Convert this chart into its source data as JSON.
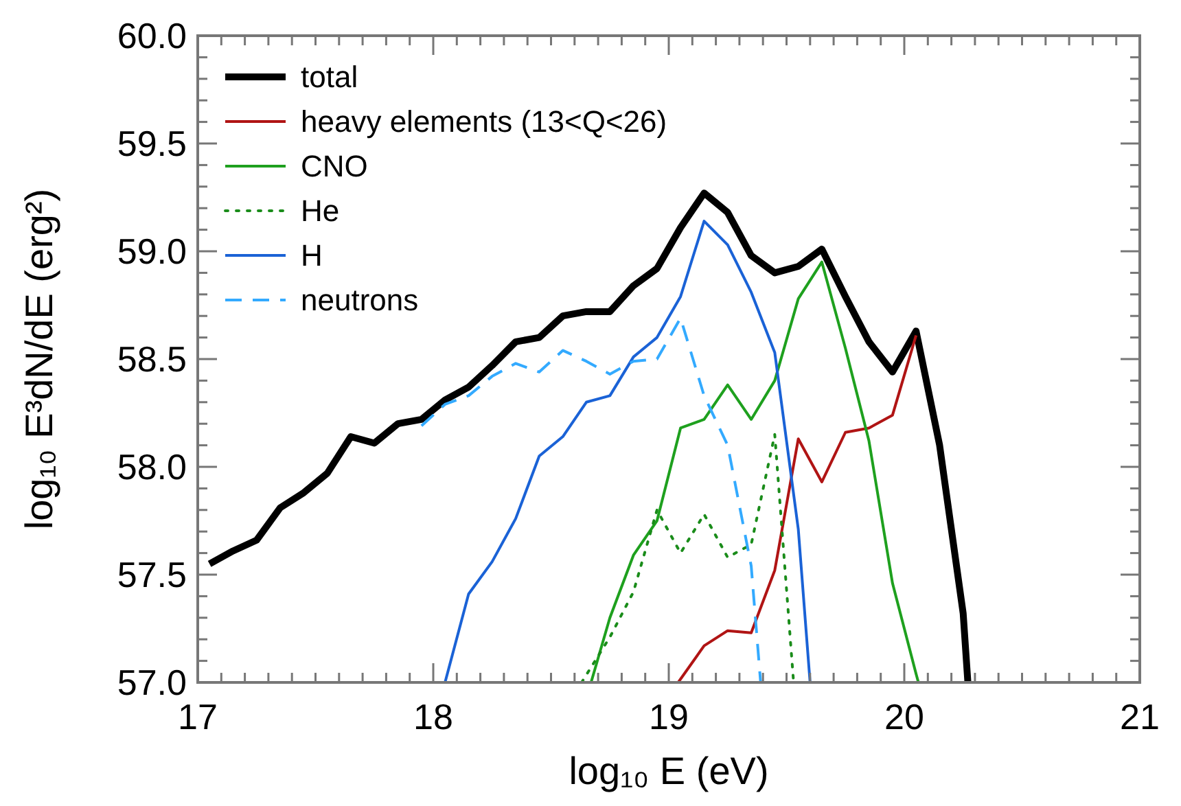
{
  "chart_data": {
    "type": "line",
    "xlabel": "log₁₀ E (eV)",
    "ylabel": "log₁₀ E³dN/dE (erg²)",
    "xlim": [
      17,
      21
    ],
    "ylim": [
      57,
      60
    ],
    "xticks": [
      17,
      {
        "value": 17.1,
        "label": null
      },
      {
        "value": 17.2,
        "label": null
      },
      {
        "value": 17.3,
        "label": null
      },
      {
        "value": 17.4,
        "label": null
      },
      {
        "value": 17.5,
        "label": null
      },
      {
        "value": 17.6,
        "label": null
      },
      {
        "value": 17.7,
        "label": null
      },
      {
        "value": 17.8,
        "label": null
      },
      {
        "value": 17.9,
        "label": null
      },
      18,
      {
        "value": 18.1,
        "label": null
      },
      {
        "value": 18.2,
        "label": null
      },
      {
        "value": 18.3,
        "label": null
      },
      {
        "value": 18.4,
        "label": null
      },
      {
        "value": 18.5,
        "label": null
      },
      {
        "value": 18.6,
        "label": null
      },
      {
        "value": 18.7,
        "label": null
      },
      {
        "value": 18.8,
        "label": null
      },
      {
        "value": 18.9,
        "label": null
      },
      19,
      {
        "value": 19.1,
        "label": null
      },
      {
        "value": 19.2,
        "label": null
      },
      {
        "value": 19.3,
        "label": null
      },
      {
        "value": 19.4,
        "label": null
      },
      {
        "value": 19.5,
        "label": null
      },
      {
        "value": 19.6,
        "label": null
      },
      {
        "value": 19.7,
        "label": null
      },
      {
        "value": 19.8,
        "label": null
      },
      {
        "value": 19.9,
        "label": null
      },
      20,
      {
        "value": 20.1,
        "label": null
      },
      {
        "value": 20.2,
        "label": null
      },
      {
        "value": 20.3,
        "label": null
      },
      {
        "value": 20.4,
        "label": null
      },
      {
        "value": 20.5,
        "label": null
      },
      {
        "value": 20.6,
        "label": null
      },
      {
        "value": 20.7,
        "label": null
      },
      {
        "value": 20.8,
        "label": null
      },
      {
        "value": 20.9,
        "label": null
      },
      21
    ],
    "yticks": [
      {
        "value": 57,
        "label": "57.0"
      },
      {
        "value": 57.1,
        "label": null
      },
      {
        "value": 57.2,
        "label": null
      },
      {
        "value": 57.3,
        "label": null
      },
      {
        "value": 57.4,
        "label": null
      },
      {
        "value": 57.5,
        "label": "57.5"
      },
      {
        "value": 57.6,
        "label": null
      },
      {
        "value": 57.7,
        "label": null
      },
      {
        "value": 57.8,
        "label": null
      },
      {
        "value": 57.9,
        "label": null
      },
      {
        "value": 58,
        "label": "58.0"
      },
      {
        "value": 58.1,
        "label": null
      },
      {
        "value": 58.2,
        "label": null
      },
      {
        "value": 58.3,
        "label": null
      },
      {
        "value": 58.4,
        "label": null
      },
      {
        "value": 58.5,
        "label": "58.5"
      },
      {
        "value": 58.6,
        "label": null
      },
      {
        "value": 58.7,
        "label": null
      },
      {
        "value": 58.8,
        "label": null
      },
      {
        "value": 58.9,
        "label": null
      },
      {
        "value": 59,
        "label": "59.0"
      },
      {
        "value": 59.1,
        "label": null
      },
      {
        "value": 59.2,
        "label": null
      },
      {
        "value": 59.3,
        "label": null
      },
      {
        "value": 59.4,
        "label": null
      },
      {
        "value": 59.5,
        "label": "59.5"
      },
      {
        "value": 59.6,
        "label": null
      },
      {
        "value": 59.7,
        "label": null
      },
      {
        "value": 59.8,
        "label": null
      },
      {
        "value": 59.9,
        "label": null
      },
      {
        "value": 60,
        "label": "60.0"
      }
    ],
    "grid": false,
    "legend": "top left",
    "marker": "none",
    "series": [
      {
        "name": "total",
        "color": "#000000",
        "line_style": "solid",
        "x": [
          17.05,
          17.15,
          17.25,
          17.35,
          17.45,
          17.55,
          17.65,
          17.75,
          17.85,
          17.95,
          18.05,
          18.15,
          18.25,
          18.35,
          18.45,
          18.55,
          18.65,
          18.75,
          18.85,
          18.95,
          19.05,
          19.15,
          19.25,
          19.35,
          19.45,
          19.55,
          19.65,
          19.75,
          19.85,
          19.95,
          20.05,
          20.15,
          20.25,
          20.27
        ],
        "values": [
          57.55,
          57.61,
          57.66,
          57.81,
          57.88,
          57.97,
          58.14,
          58.11,
          58.2,
          58.22,
          58.31,
          58.37,
          58.47,
          58.58,
          58.6,
          58.7,
          58.72,
          58.72,
          58.84,
          58.92,
          59.11,
          59.27,
          59.18,
          58.98,
          58.9,
          58.93,
          59.01,
          58.79,
          58.58,
          58.44,
          58.63,
          58.1,
          57.32,
          57.0
        ]
      },
      {
        "name": "heavy elements (13<Q<26)",
        "color": "#b01414",
        "line_style": "solid",
        "x": [
          19.04,
          19.15,
          19.25,
          19.35,
          19.45,
          19.55,
          19.65,
          19.75,
          19.85,
          19.95,
          20.05
        ],
        "values": [
          57.0,
          57.17,
          57.24,
          57.23,
          57.52,
          58.13,
          57.93,
          58.16,
          58.18,
          58.24,
          58.61
        ]
      },
      {
        "name": "CNO",
        "color": "#1ea01e",
        "line_style": "solid",
        "x": [
          18.67,
          18.75,
          18.85,
          18.95,
          19.05,
          19.15,
          19.25,
          19.35,
          19.45,
          19.55,
          19.65,
          19.75,
          19.85,
          19.95,
          20.05,
          20.06
        ],
        "values": [
          57.0,
          57.3,
          57.59,
          57.75,
          58.18,
          58.22,
          58.38,
          58.22,
          58.4,
          58.78,
          58.95,
          58.55,
          58.12,
          57.46,
          57.04,
          57.0
        ]
      },
      {
        "name": "He",
        "color": "#1a8c1a",
        "line_style": "dotted",
        "x": [
          18.63,
          18.75,
          18.85,
          18.95,
          19.05,
          19.15,
          19.25,
          19.35,
          19.45,
          19.53
        ],
        "values": [
          57.0,
          57.21,
          57.42,
          57.8,
          57.6,
          57.78,
          57.58,
          57.64,
          58.15,
          57.0
        ]
      },
      {
        "name": "H",
        "color": "#1a62d6",
        "line_style": "solid",
        "x": [
          18.05,
          18.15,
          18.25,
          18.35,
          18.45,
          18.55,
          18.65,
          18.75,
          18.85,
          18.95,
          19.05,
          19.15,
          19.25,
          19.35,
          19.45,
          19.55,
          19.6
        ],
        "values": [
          57.0,
          57.41,
          57.56,
          57.76,
          58.05,
          58.14,
          58.3,
          58.33,
          58.51,
          58.6,
          58.79,
          59.14,
          59.03,
          58.81,
          58.53,
          57.71,
          57.0
        ]
      },
      {
        "name": "neutrons",
        "color": "#33aaff",
        "line_style": "dashed",
        "x": [
          17.95,
          18.05,
          18.15,
          18.25,
          18.35,
          18.45,
          18.55,
          18.65,
          18.75,
          18.85,
          18.95,
          19.05,
          19.15,
          19.25,
          19.35,
          19.39
        ],
        "values": [
          58.19,
          58.29,
          58.33,
          58.42,
          58.48,
          58.44,
          58.54,
          58.49,
          58.43,
          58.49,
          58.5,
          58.69,
          58.33,
          58.1,
          57.54,
          57.0
        ]
      }
    ]
  }
}
